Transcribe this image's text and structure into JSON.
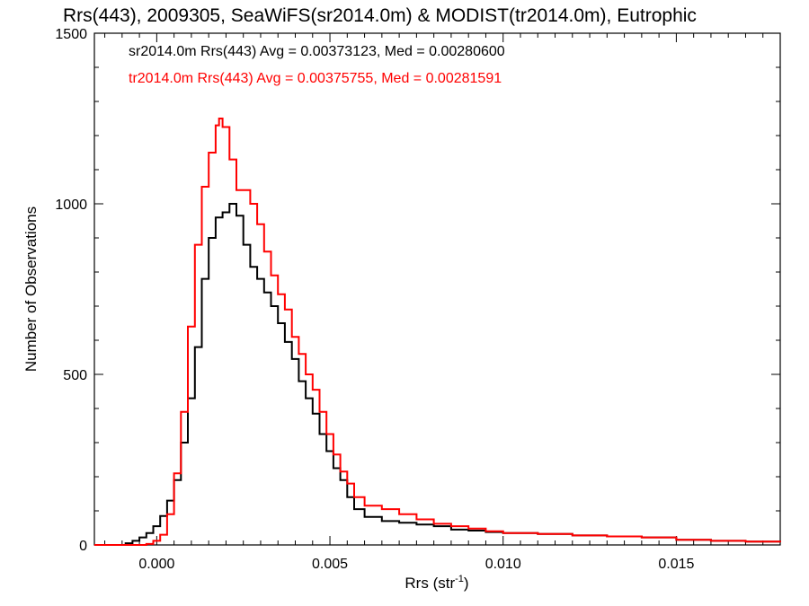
{
  "chart_data": {
    "type": "line",
    "title": "Rrs(443), 2009305, SeaWiFS(sr2014.0m) & MODIST(tr2014.0m), Eutrophic",
    "xlabel": "Rrs (str",
    "xlabel_sup": "-1",
    "xlabel_end": ")",
    "ylabel": "Number of Observations",
    "xlim": [
      -0.0018,
      0.018
    ],
    "ylim": [
      0,
      1500
    ],
    "xticks": [
      0.0,
      0.005,
      0.01,
      0.015
    ],
    "xtick_labels": [
      "0.000",
      "0.005",
      "0.010",
      "0.015"
    ],
    "yticks": [
      0,
      500,
      1000,
      1500
    ],
    "ytick_labels": [
      "0",
      "500",
      "1000",
      "1500"
    ],
    "grid": false,
    "legend_position": "top-left",
    "series": [
      {
        "name": "sr2014.0m",
        "legend_text": "sr2014.0m Rrs(443) Avg = 0.00373123, Med = 0.00280600",
        "color": "#000000",
        "x": [
          -0.0018,
          -0.0011,
          -0.0009,
          -0.0007,
          -0.0005,
          -0.0003,
          -0.0001,
          0.0001,
          0.0003,
          0.0005,
          0.0007,
          0.0009,
          0.0011,
          0.0013,
          0.0015,
          0.0017,
          0.0019,
          0.0021,
          0.0023,
          0.0025,
          0.0027,
          0.0029,
          0.0031,
          0.0033,
          0.0035,
          0.0037,
          0.0039,
          0.0041,
          0.0043,
          0.0045,
          0.0047,
          0.0049,
          0.0051,
          0.0053,
          0.0055,
          0.0057,
          0.006,
          0.0065,
          0.007,
          0.0075,
          0.008,
          0.0085,
          0.009,
          0.0095,
          0.01,
          0.011,
          0.012,
          0.013,
          0.014,
          0.015,
          0.016,
          0.017,
          0.018
        ],
        "y": [
          0,
          0,
          5,
          12,
          22,
          35,
          55,
          85,
          130,
          190,
          300,
          430,
          580,
          780,
          900,
          960,
          975,
          1000,
          965,
          880,
          815,
          780,
          740,
          700,
          650,
          595,
          545,
          480,
          430,
          385,
          325,
          275,
          225,
          190,
          140,
          105,
          82,
          70,
          65,
          60,
          55,
          45,
          42,
          38,
          35,
          32,
          28,
          25,
          22,
          15,
          12,
          10,
          8
        ]
      },
      {
        "name": "tr2014.0m",
        "legend_text": "tr2014.0m Rrs(443) Avg = 0.00375755, Med = 0.00281591",
        "color": "#ff0000",
        "x": [
          -0.0018,
          -0.0005,
          -0.0003,
          -0.0001,
          0.0001,
          0.0003,
          0.0005,
          0.0007,
          0.0009,
          0.0011,
          0.0013,
          0.0015,
          0.0017,
          0.0018,
          0.0019,
          0.0021,
          0.0023,
          0.0025,
          0.0027,
          0.0029,
          0.0031,
          0.0033,
          0.0035,
          0.0037,
          0.0039,
          0.0041,
          0.0043,
          0.0045,
          0.0047,
          0.0049,
          0.0051,
          0.0053,
          0.0055,
          0.0057,
          0.006,
          0.0065,
          0.007,
          0.0075,
          0.008,
          0.0085,
          0.009,
          0.0095,
          0.01,
          0.011,
          0.012,
          0.013,
          0.014,
          0.015,
          0.016,
          0.017,
          0.018
        ],
        "y": [
          0,
          0,
          3,
          12,
          30,
          90,
          210,
          390,
          640,
          880,
          1050,
          1150,
          1230,
          1250,
          1225,
          1130,
          1040,
          1040,
          1000,
          940,
          860,
          790,
          735,
          690,
          610,
          560,
          500,
          455,
          390,
          325,
          265,
          215,
          180,
          140,
          115,
          105,
          90,
          75,
          62,
          55,
          48,
          40,
          35,
          32,
          28,
          25,
          22,
          15,
          12,
          10,
          8
        ]
      }
    ]
  }
}
